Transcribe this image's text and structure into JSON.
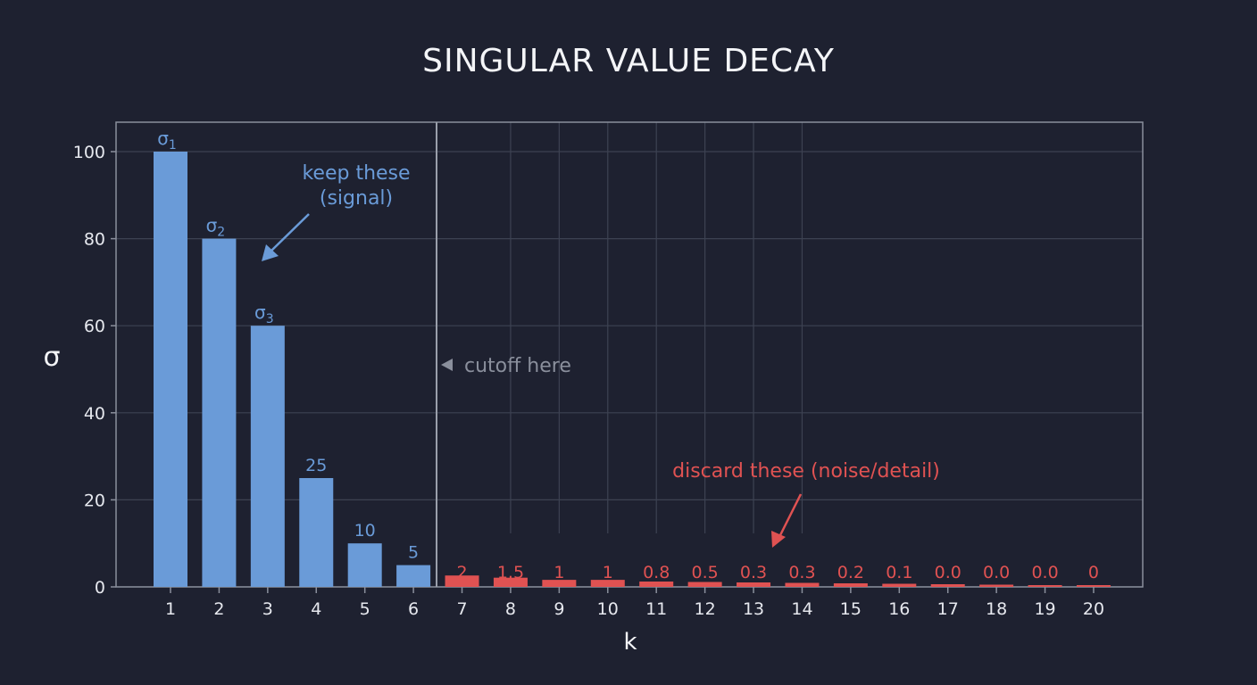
{
  "title": "SINGULAR VALUE DECAY",
  "colors": {
    "background": "#1e2130",
    "signal": "#6a9bd8",
    "noise": "#e05252",
    "grid": "#3d4252",
    "axis": "#8a8f9c",
    "cutoff_text": "#8a8f9c"
  },
  "annotations": {
    "keep": [
      "keep these",
      "(signal)"
    ],
    "discard": "discard these (noise/detail)",
    "cutoff": "cutoff here"
  },
  "chart_data": {
    "type": "bar",
    "title": "SINGULAR VALUE DECAY",
    "xlabel": "k",
    "ylabel": "σ",
    "ylim": [
      0,
      100
    ],
    "yticks": [
      0,
      20,
      40,
      60,
      80,
      100
    ],
    "grid": true,
    "categories": [
      "1",
      "2",
      "3",
      "4",
      "5",
      "6",
      "7",
      "8",
      "9",
      "10",
      "11",
      "12",
      "13",
      "14",
      "15",
      "16",
      "17",
      "18",
      "19",
      "20"
    ],
    "values": [
      100,
      80,
      60,
      25,
      10,
      5,
      2,
      1.5,
      1,
      1,
      0.8,
      0.5,
      0.3,
      0.3,
      0.2,
      0.1,
      0.0,
      0.0,
      0.0,
      0
    ],
    "bar_labels": [
      "σ1",
      "σ2",
      "σ3",
      "25",
      "10",
      "5",
      "2",
      "1.5",
      "1",
      "1",
      "0.8",
      "0.5",
      "0.3",
      "0.3",
      "0.2",
      "0.1",
      "0.0",
      "0.0",
      "0.0",
      "0"
    ],
    "groups": [
      {
        "name": "keep these (signal)",
        "range": [
          1,
          6
        ],
        "color": "#6a9bd8"
      },
      {
        "name": "discard these (noise/detail)",
        "range": [
          7,
          20
        ],
        "color": "#e05252"
      }
    ],
    "cutoff_after_k": 6,
    "annotations": [
      "keep these (signal)",
      "discard these (noise/detail)",
      "◀ cutoff here"
    ]
  }
}
